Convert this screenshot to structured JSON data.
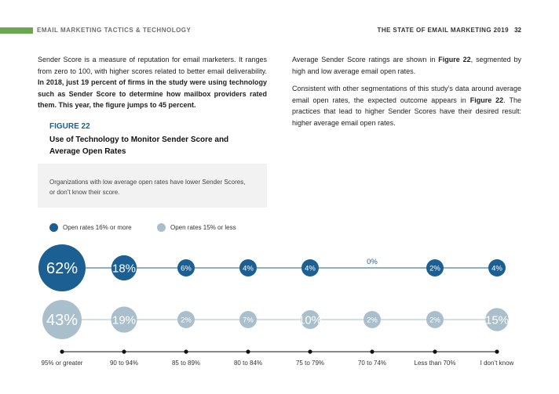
{
  "header": {
    "section": "EMAIL MARKETING TACTICS & TECHNOLOGY",
    "report": "THE STATE OF EMAIL MARKETING 2019",
    "page_number": "32"
  },
  "body": {
    "left_plain": "Sender Score is a measure of reputation for email marketers. It ranges from zero to 100, with higher scores related to better email deliverability.",
    "left_bold": "In 2018, just 19 percent of firms in the study were using technology such as Sender Score to determine how mailbox providers rated them. This year, the figure jumps to 45 percent.",
    "right_p1_a": "Average Sender Score ratings are shown in ",
    "right_p1_fig": "Figure 22",
    "right_p1_b": ", segmented by high and low average email open rates.",
    "right_p2_a": "Consistent with other segmentations of this study’s data around average email open rates, the expected outcome appears in ",
    "right_p2_fig": "Figure 22",
    "right_p2_b": ". The practices that lead to higher Sender Scores have their desired result: higher average email open rates."
  },
  "figure": {
    "label": "FIGURE 22",
    "title": "Use of Technology to Monitor Sender Score and Average Open Rates",
    "callout": "Organizations with low average open rates have lower Sender Scores, or don’t know their score."
  },
  "chart_data": {
    "type": "bubble",
    "categories": [
      "95% or greater",
      "90 to 94%",
      "85 to 89%",
      "80 to 84%",
      "75 to 79%",
      "70 to 74%",
      "Less than 70%",
      "I don’t know"
    ],
    "series": [
      {
        "name": "Open rates 16% or more",
        "color": "#1b5f93",
        "values": [
          62,
          18,
          6,
          4,
          4,
          0,
          2,
          4
        ],
        "labels": [
          "62%",
          "18%",
          "6%",
          "4%",
          "4%",
          "0%",
          "2%",
          "4%"
        ]
      },
      {
        "name": "Open rates 15% or less",
        "color": "#a9bfcb",
        "values": [
          43,
          19,
          2,
          7,
          10,
          2,
          2,
          15
        ],
        "labels": [
          "43%",
          "19%",
          "2%",
          "7%",
          "10%",
          "2%",
          "2%",
          "15%"
        ]
      }
    ]
  }
}
